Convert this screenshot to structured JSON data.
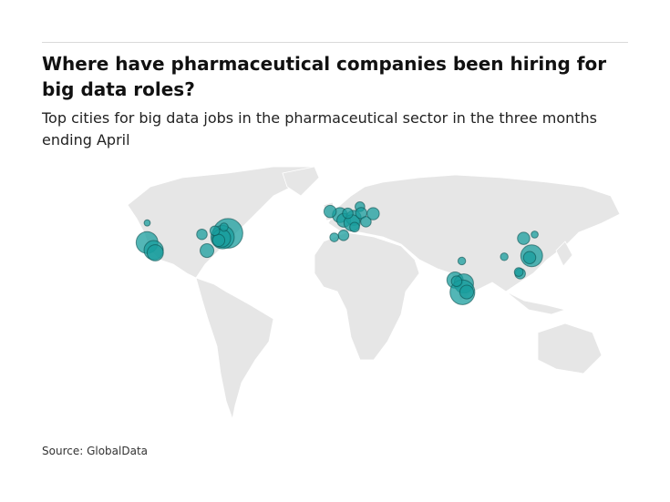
{
  "title": "Where have pharmaceutical companies been hiring for big data roles?",
  "subtitle": "Top cities for big data jobs in the pharmaceutical sector in the three months ending April",
  "source": "Source: GlobalData",
  "map_data": {
    "type": "bubble-map",
    "color": "#1a9e9e",
    "bubbles": [
      {
        "lon": -122.4,
        "lat": 37.8,
        "value": 60
      },
      {
        "lon": -118.2,
        "lat": 34.0,
        "value": 45
      },
      {
        "lon": -117.2,
        "lat": 32.7,
        "value": 30
      },
      {
        "lon": -122.3,
        "lat": 47.6,
        "value": 2
      },
      {
        "lon": -71.1,
        "lat": 42.4,
        "value": 120
      },
      {
        "lon": -74.5,
        "lat": 40.5,
        "value": 70
      },
      {
        "lon": -75.2,
        "lat": 40.0,
        "value": 40
      },
      {
        "lon": -77.0,
        "lat": 38.9,
        "value": 15
      },
      {
        "lon": -84.4,
        "lat": 33.8,
        "value": 20
      },
      {
        "lon": -87.6,
        "lat": 41.9,
        "value": 10
      },
      {
        "lon": -79.4,
        "lat": 43.7,
        "value": 8
      },
      {
        "lon": -73.6,
        "lat": 45.5,
        "value": 5
      },
      {
        "lon": -0.1,
        "lat": 51.5,
        "value": 25
      },
      {
        "lon": -6.3,
        "lat": 53.3,
        "value": 15
      },
      {
        "lon": 2.35,
        "lat": 48.9,
        "value": 20
      },
      {
        "lon": 8.6,
        "lat": 50.1,
        "value": 25
      },
      {
        "lon": 7.6,
        "lat": 47.6,
        "value": 30
      },
      {
        "lon": 4.9,
        "lat": 52.4,
        "value": 10
      },
      {
        "lon": 12.6,
        "lat": 55.7,
        "value": 8
      },
      {
        "lon": 13.4,
        "lat": 52.5,
        "value": 12
      },
      {
        "lon": 16.4,
        "lat": 48.2,
        "value": 10
      },
      {
        "lon": 21.0,
        "lat": 52.2,
        "value": 15
      },
      {
        "lon": 2.2,
        "lat": 41.4,
        "value": 10
      },
      {
        "lon": -3.7,
        "lat": 40.4,
        "value": 6
      },
      {
        "lon": 9.2,
        "lat": 45.5,
        "value": 8
      },
      {
        "lon": 72.9,
        "lat": 19.1,
        "value": 30
      },
      {
        "lon": 78.5,
        "lat": 17.4,
        "value": 45
      },
      {
        "lon": 77.6,
        "lat": 13.0,
        "value": 80
      },
      {
        "lon": 80.3,
        "lat": 13.1,
        "value": 20
      },
      {
        "lon": 73.9,
        "lat": 18.5,
        "value": 10
      },
      {
        "lon": 77.2,
        "lat": 28.6,
        "value": 4
      },
      {
        "lon": 116.4,
        "lat": 39.9,
        "value": 15
      },
      {
        "lon": 121.5,
        "lat": 31.2,
        "value": 60
      },
      {
        "lon": 120.2,
        "lat": 30.3,
        "value": 15
      },
      {
        "lon": 114.2,
        "lat": 22.3,
        "value": 10
      },
      {
        "lon": 104.1,
        "lat": 30.7,
        "value": 4
      },
      {
        "lon": 123.4,
        "lat": 41.8,
        "value": 3
      },
      {
        "lon": 113.3,
        "lat": 23.1,
        "value": 6
      }
    ]
  }
}
